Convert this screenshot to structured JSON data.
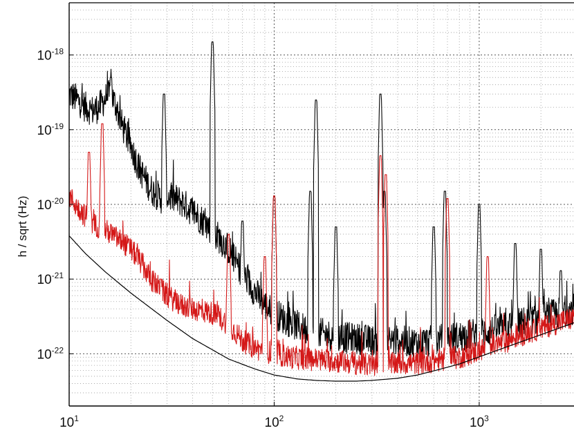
{
  "chart_data": {
    "type": "line",
    "xscale": "log",
    "yscale": "log",
    "xlim": [
      10,
      2900
    ],
    "ylim": [
      2e-23,
      5e-18
    ],
    "ylabel": "h / sqrt (Hz)",
    "xlabel": "",
    "grid": true,
    "x_ticks": [
      {
        "value": 10,
        "base": "10",
        "exp": "1"
      },
      {
        "value": 100,
        "base": "10",
        "exp": "2"
      },
      {
        "value": 1000,
        "base": "10",
        "exp": "3"
      }
    ],
    "y_ticks": [
      {
        "value": 1e-18,
        "base": "10",
        "exp": "-18"
      },
      {
        "value": 1e-19,
        "base": "10",
        "exp": "-19"
      },
      {
        "value": 1e-20,
        "base": "10",
        "exp": "-20"
      },
      {
        "value": 1e-21,
        "base": "10",
        "exp": "-21"
      },
      {
        "value": 1e-22,
        "base": "10",
        "exp": "-22"
      }
    ],
    "series": [
      {
        "color": "#000000",
        "noise": 0.6,
        "x": [
          10,
          11,
          12,
          13,
          14,
          15,
          16,
          17,
          18,
          20,
          22,
          25,
          28,
          30,
          35,
          40,
          45,
          50,
          60,
          70,
          80,
          90,
          100,
          120,
          150,
          200,
          250,
          300,
          350,
          400,
          500,
          600,
          700,
          800,
          1000,
          1300,
          1600,
          2000,
          2500,
          2900
        ],
        "y": [
          3e-19,
          2.5e-19,
          2e-19,
          1.8e-19,
          2e-19,
          2.6e-19,
          3e-19,
          2e-19,
          1.2e-19,
          6e-20,
          3e-20,
          1.6e-20,
          1.2e-20,
          1.3e-20,
          1.1e-20,
          8e-21,
          6e-21,
          4.5e-21,
          2.5e-21,
          1.2e-21,
          7e-22,
          4.5e-22,
          3.5e-22,
          2.6e-22,
          2e-22,
          1.7e-22,
          1.6e-22,
          1.5e-22,
          1.5e-22,
          1.5e-22,
          1.4e-22,
          1.5e-22,
          1.6e-22,
          1.7e-22,
          1.9e-22,
          2.2e-22,
          2.6e-22,
          3e-22,
          3.6e-22,
          4e-22
        ],
        "lines": [
          {
            "x": 16,
            "peak": 5e-19
          },
          {
            "x": 29,
            "peak": 3e-19
          },
          {
            "x": 50,
            "peak": 1.5e-18
          },
          {
            "x": 70,
            "peak": 6e-21
          },
          {
            "x": 100,
            "peak": 1.3e-20
          },
          {
            "x": 150,
            "peak": 1.5e-20
          },
          {
            "x": 160,
            "peak": 2.5e-19
          },
          {
            "x": 200,
            "peak": 5e-21
          },
          {
            "x": 330,
            "peak": 3e-19
          },
          {
            "x": 345,
            "peak": 1.5e-20
          },
          {
            "x": 600,
            "peak": 5e-21
          },
          {
            "x": 680,
            "peak": 1.5e-20
          },
          {
            "x": 1000,
            "peak": 1e-20
          },
          {
            "x": 1500,
            "peak": 3e-21
          },
          {
            "x": 2000,
            "peak": 2.5e-21
          },
          {
            "x": 2500,
            "peak": 1.3e-21
          }
        ]
      },
      {
        "color": "#d41818",
        "noise": 0.45,
        "x": [
          10,
          11,
          12,
          13,
          14,
          15,
          16,
          18,
          20,
          22,
          25,
          30,
          35,
          40,
          50,
          60,
          70,
          80,
          100,
          120,
          150,
          200,
          250,
          300,
          350,
          400,
          500,
          600,
          700,
          800,
          1000,
          1300,
          1600,
          2000,
          2500,
          2900
        ],
        "y": [
          1.3e-20,
          9e-21,
          7e-21,
          5.5e-21,
          5e-21,
          4.5e-21,
          4e-21,
          3.2e-21,
          2.5e-21,
          1.8e-21,
          1e-21,
          6e-22,
          4.5e-22,
          4e-22,
          3.5e-22,
          2.5e-22,
          1.5e-22,
          1.2e-22,
          1e-22,
          9e-23,
          8.5e-23,
          8e-23,
          7.5e-23,
          7e-23,
          7e-23,
          7.5e-23,
          7.5e-23,
          8e-23,
          8.5e-23,
          9e-23,
          1.1e-22,
          1.4e-22,
          1.8e-22,
          2.2e-22,
          2.7e-22,
          3e-22
        ],
        "lines": [
          {
            "x": 12.5,
            "peak": 5e-20
          },
          {
            "x": 14.5,
            "peak": 1.2e-19
          },
          {
            "x": 28,
            "peak": 1e-21
          },
          {
            "x": 60,
            "peak": 4e-21
          },
          {
            "x": 90,
            "peak": 2e-21
          },
          {
            "x": 100,
            "peak": 1.3e-20
          },
          {
            "x": 330,
            "peak": 4.5e-20
          },
          {
            "x": 350,
            "peak": 2.5e-20
          },
          {
            "x": 700,
            "peak": 1.2e-20
          },
          {
            "x": 1100,
            "peak": 2e-21
          }
        ]
      },
      {
        "color": "#000000",
        "noise": 0,
        "x": [
          10,
          12,
          15,
          20,
          30,
          40,
          60,
          80,
          100,
          130,
          160,
          200,
          250,
          300,
          400,
          500,
          600,
          800,
          1000,
          1300,
          1600,
          2000,
          2500,
          2900
        ],
        "y": [
          3.8e-21,
          2.2e-21,
          1.25e-21,
          6.5e-22,
          2.8e-22,
          1.6e-22,
          8.5e-23,
          6.3e-23,
          5.2e-23,
          4.6e-23,
          4.4e-23,
          4.3e-23,
          4.3e-23,
          4.4e-23,
          4.7e-23,
          5.2e-23,
          5.9e-23,
          7.3e-23,
          9.1e-23,
          1.18e-22,
          1.45e-22,
          1.8e-22,
          2.25e-22,
          2.6e-22
        ]
      }
    ]
  }
}
